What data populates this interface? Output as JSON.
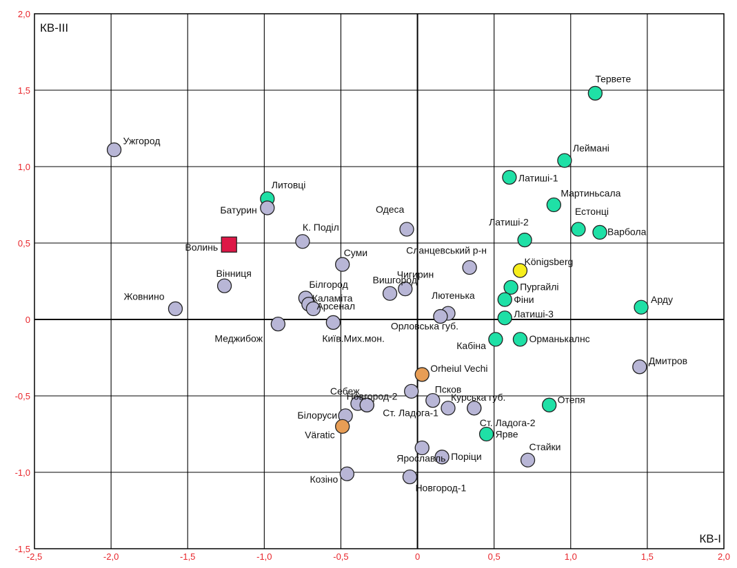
{
  "chart_data": {
    "type": "scatter",
    "title": "",
    "xlabel": "КВ-І",
    "ylabel": "КВ-ІІІ",
    "xlim": [
      -2.5,
      2.0
    ],
    "ylim": [
      -1.5,
      2.0
    ],
    "x_ticks": [
      "-2,5",
      "-2,0",
      "-1,5",
      "-1,0",
      "-0,5",
      "0",
      "0,5",
      "1,0",
      "1,5",
      "2,0"
    ],
    "y_ticks": [
      "-1,5",
      "-1,0",
      "-0,5",
      "0",
      "0,5",
      "1,0",
      "1,5",
      "2,0"
    ],
    "grid": true,
    "colors": {
      "lavender": "#b8b6d6",
      "green": "#1fe0a6",
      "orange": "#e79d55",
      "yellow": "#f7ee1c",
      "red": "#dd1746"
    },
    "points": [
      {
        "label": "Ужгород",
        "x": -1.98,
        "y": 1.11,
        "color": "lavender",
        "marker": "circle"
      },
      {
        "label": "Литовці",
        "x": -0.98,
        "y": 0.79,
        "color": "green",
        "marker": "circle"
      },
      {
        "label": "Батурин",
        "x": -0.98,
        "y": 0.73,
        "color": "lavender",
        "marker": "circle"
      },
      {
        "label": "Волинь",
        "x": -1.23,
        "y": 0.49,
        "color": "red",
        "marker": "square"
      },
      {
        "label": "К. Поділ",
        "x": -0.75,
        "y": 0.51,
        "color": "lavender",
        "marker": "circle"
      },
      {
        "label": "Одеса",
        "x": -0.07,
        "y": 0.59,
        "color": "lavender",
        "marker": "circle"
      },
      {
        "label": "Суми",
        "x": -0.49,
        "y": 0.36,
        "color": "lavender",
        "marker": "circle"
      },
      {
        "label": "Вінниця",
        "x": -1.26,
        "y": 0.22,
        "color": "lavender",
        "marker": "circle"
      },
      {
        "label": "Жовнино",
        "x": -1.58,
        "y": 0.07,
        "color": "lavender",
        "marker": "circle"
      },
      {
        "label": "Білгород",
        "x": -0.73,
        "y": 0.14,
        "color": "lavender",
        "marker": "circle"
      },
      {
        "label": "Каламіта",
        "x": -0.71,
        "y": 0.1,
        "color": "lavender",
        "marker": "circle"
      },
      {
        "label": "Арсенал",
        "x": -0.68,
        "y": 0.07,
        "color": "lavender",
        "marker": "circle"
      },
      {
        "label": "Чигирин",
        "x": -0.08,
        "y": 0.2,
        "color": "lavender",
        "marker": "circle"
      },
      {
        "label": "Вишгород",
        "x": -0.18,
        "y": 0.17,
        "color": "lavender",
        "marker": "circle"
      },
      {
        "label": "Сланцевський р-н",
        "x": 0.34,
        "y": 0.34,
        "color": "lavender",
        "marker": "circle"
      },
      {
        "label": "Лютенька",
        "x": 0.2,
        "y": 0.04,
        "color": "lavender",
        "marker": "circle"
      },
      {
        "label": "Орловська губ.",
        "x": 0.15,
        "y": 0.02,
        "color": "lavender",
        "marker": "circle"
      },
      {
        "label": "Меджибож",
        "x": -0.91,
        "y": -0.03,
        "color": "lavender",
        "marker": "circle"
      },
      {
        "label": "Київ.Мих.мон.",
        "x": -0.55,
        "y": -0.02,
        "color": "lavender",
        "marker": "circle"
      },
      {
        "label": "Тервете",
        "x": 1.16,
        "y": 1.48,
        "color": "green",
        "marker": "circle"
      },
      {
        "label": "Леймані",
        "x": 0.96,
        "y": 1.04,
        "color": "green",
        "marker": "circle"
      },
      {
        "label": "Латиші-1",
        "x": 0.6,
        "y": 0.93,
        "color": "green",
        "marker": "circle"
      },
      {
        "label": "Мартиньсала",
        "x": 0.89,
        "y": 0.75,
        "color": "green",
        "marker": "circle"
      },
      {
        "label": "Естонці",
        "x": 1.05,
        "y": 0.59,
        "color": "green",
        "marker": "circle"
      },
      {
        "label": "Варбола",
        "x": 1.19,
        "y": 0.57,
        "color": "green",
        "marker": "circle"
      },
      {
        "label": "Латиші-2",
        "x": 0.7,
        "y": 0.52,
        "color": "green",
        "marker": "circle"
      },
      {
        "label": "Königsberg",
        "x": 0.67,
        "y": 0.32,
        "color": "yellow",
        "marker": "circle"
      },
      {
        "label": "Пургайлі",
        "x": 0.61,
        "y": 0.21,
        "color": "green",
        "marker": "circle"
      },
      {
        "label": "Фіни",
        "x": 0.57,
        "y": 0.13,
        "color": "green",
        "marker": "circle"
      },
      {
        "label": "Латиші-3",
        "x": 0.57,
        "y": 0.01,
        "color": "green",
        "marker": "circle"
      },
      {
        "label": "Арду",
        "x": 1.46,
        "y": 0.08,
        "color": "green",
        "marker": "circle"
      },
      {
        "label": "Кабіна",
        "x": 0.51,
        "y": -0.13,
        "color": "green",
        "marker": "circle"
      },
      {
        "label": "Орманькалнс",
        "x": 0.67,
        "y": -0.13,
        "color": "green",
        "marker": "circle"
      },
      {
        "label": "Дмитров",
        "x": 1.45,
        "y": -0.31,
        "color": "lavender",
        "marker": "circle"
      },
      {
        "label": "Orheiul Vechi",
        "x": 0.03,
        "y": -0.36,
        "color": "orange",
        "marker": "circle"
      },
      {
        "label": "Новгород-2",
        "x": -0.04,
        "y": -0.47,
        "color": "lavender",
        "marker": "circle"
      },
      {
        "label": "Себеж",
        "x": -0.39,
        "y": -0.55,
        "color": "lavender",
        "marker": "circle"
      },
      {
        "label": "",
        "x": -0.33,
        "y": -0.56,
        "color": "lavender",
        "marker": "circle"
      },
      {
        "label": "Псков",
        "x": 0.1,
        "y": -0.53,
        "color": "lavender",
        "marker": "circle"
      },
      {
        "label": "Курська губ.",
        "x": 0.2,
        "y": -0.58,
        "color": "lavender",
        "marker": "circle"
      },
      {
        "label": "",
        "x": 0.37,
        "y": -0.58,
        "color": "lavender",
        "marker": "circle"
      },
      {
        "label": "Білоруси",
        "x": -0.47,
        "y": -0.63,
        "color": "lavender",
        "marker": "circle"
      },
      {
        "label": "Ст. Ладога-1",
        "x": -0.33,
        "y": -0.56,
        "color": "lavender",
        "marker": "circle"
      },
      {
        "label": "Ст. Ладога-2",
        "x": 0.37,
        "y": -0.58,
        "color": "lavender",
        "marker": "circle"
      },
      {
        "label": "Отепя",
        "x": 0.86,
        "y": -0.56,
        "color": "green",
        "marker": "circle"
      },
      {
        "label": "Väratic",
        "x": -0.49,
        "y": -0.7,
        "color": "orange",
        "marker": "circle"
      },
      {
        "label": "Ярве",
        "x": 0.45,
        "y": -0.75,
        "color": "green",
        "marker": "circle"
      },
      {
        "label": "Ярославль",
        "x": 0.03,
        "y": -0.84,
        "color": "lavender",
        "marker": "circle"
      },
      {
        "label": "Поріци",
        "x": 0.16,
        "y": -0.9,
        "color": "lavender",
        "marker": "circle"
      },
      {
        "label": "Стайки",
        "x": 0.72,
        "y": -0.92,
        "color": "lavender",
        "marker": "circle"
      },
      {
        "label": "Козіно",
        "x": -0.46,
        "y": -1.01,
        "color": "lavender",
        "marker": "circle"
      },
      {
        "label": "Новгород-1",
        "x": -0.05,
        "y": -1.03,
        "color": "lavender",
        "marker": "circle"
      }
    ]
  }
}
